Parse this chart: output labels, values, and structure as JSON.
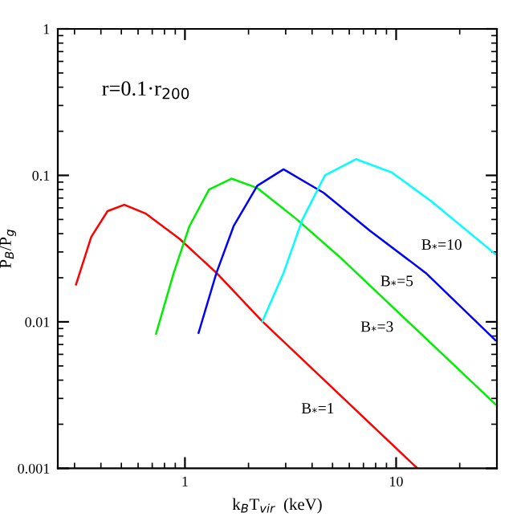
{
  "chart_data": {
    "type": "line",
    "xlabel": "k$_{B}$T$_{vir}$  (keV)",
    "ylabel": "P$_{B}$/P$_{g}$",
    "log": "xy",
    "xlim": [
      0.25,
      30
    ],
    "ylim": [
      0.001,
      1
    ],
    "xticks": [
      1,
      10
    ],
    "yticks": [
      0.001,
      0.01,
      0.1,
      1
    ],
    "grid": false,
    "legend": false,
    "marker": "none",
    "line_style": "solid",
    "annotations": [
      "r=0.1·r$_{200}$"
    ],
    "series": [
      {
        "name": "B$_{*}$=1",
        "color": "#ff0000",
        "x": [
          0.305,
          0.36,
          0.43,
          0.516,
          0.65,
          0.94,
          1.41,
          2.32,
          12.6
        ],
        "values": [
          0.018,
          0.038,
          0.057,
          0.063,
          0.055,
          0.037,
          0.0216,
          0.0101,
          0.001
        ]
      },
      {
        "name": "B$_{*}$=3",
        "color": "#00ee00",
        "x": [
          0.73,
          0.885,
          1.05,
          1.3,
          1.66,
          2.2,
          3.39,
          5.41,
          29.5
        ],
        "values": [
          0.0083,
          0.0216,
          0.045,
          0.08,
          0.095,
          0.082,
          0.05,
          0.0277,
          0.00274
        ]
      },
      {
        "name": "B$_{*}$=5",
        "color": "#0000ff",
        "x": [
          1.16,
          1.41,
          1.7,
          2.2,
          2.93,
          4.54,
          7.5,
          13.8,
          29.5
        ],
        "values": [
          0.0084,
          0.0216,
          0.045,
          0.085,
          0.11,
          0.076,
          0.042,
          0.0216,
          0.0075
        ]
      },
      {
        "name": "B$_{*}$=10",
        "color": "#00ffff",
        "x": [
          2.32,
          2.93,
          3.6,
          4.6,
          6.45,
          9.5,
          14.6,
          29.5
        ],
        "values": [
          0.01,
          0.0216,
          0.05,
          0.1,
          0.129,
          0.105,
          0.067,
          0.029
        ]
      }
    ]
  }
}
